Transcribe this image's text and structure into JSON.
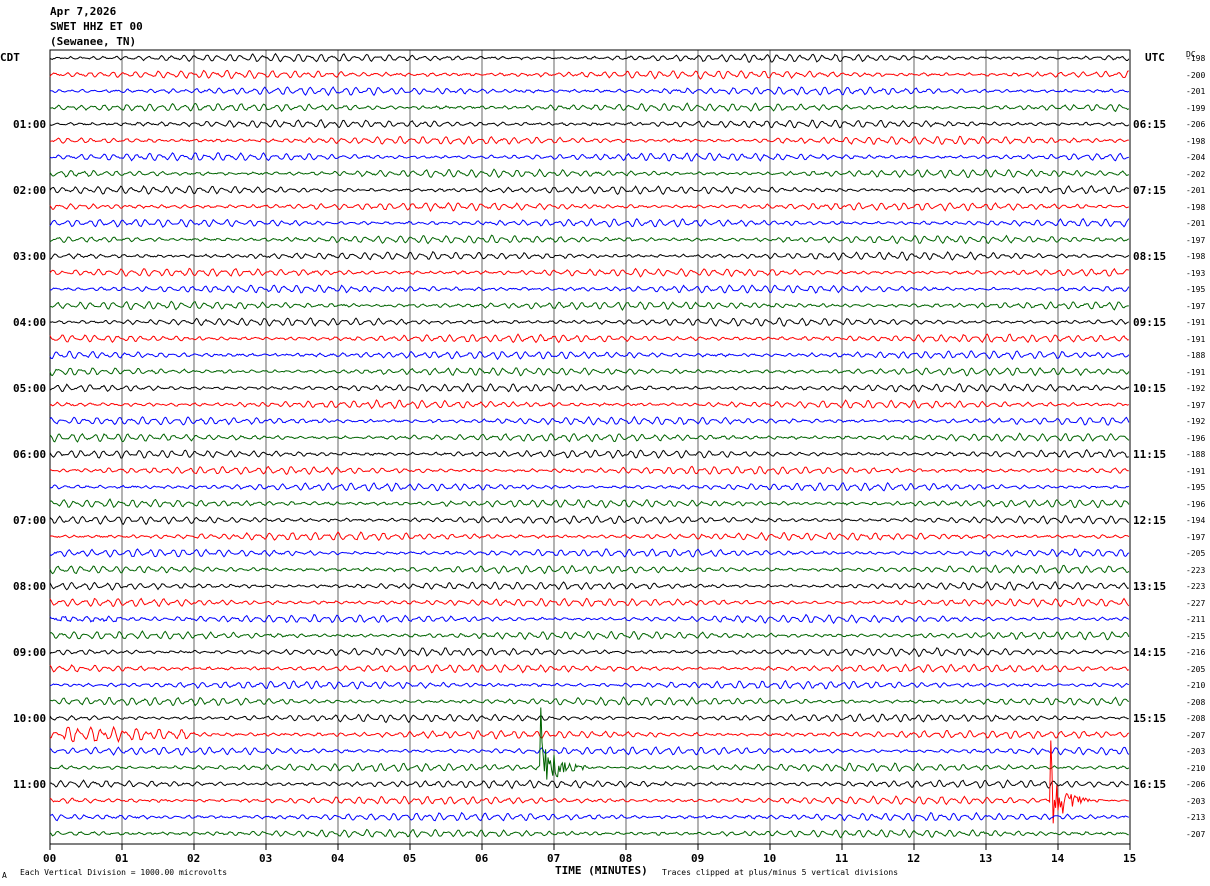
{
  "header": {
    "date": "Apr 7,2026",
    "station": "SWET HHZ ET 00",
    "location": "(Sewanee, TN)"
  },
  "left_zone": "CDT",
  "right_zone": "UTC",
  "dc_label": "DC",
  "footer": {
    "scale_note": "Each Vertical Division = 1000.00 microvolts",
    "xlabel": "TIME (MINUTES)",
    "clip_note": "Traces clipped at plus/minus 5 vertical divisions",
    "corner_mark": "A"
  },
  "colors": {
    "cycle": [
      "#000000",
      "#ff0000",
      "#0000ff",
      "#006400"
    ],
    "grid": "#000000"
  },
  "chart_data": {
    "type": "line",
    "title": "SWET HHZ ET 00",
    "xlabel": "TIME (MINUTES)",
    "xlim": [
      0,
      15
    ],
    "x_ticks": [
      "00",
      "01",
      "02",
      "03",
      "04",
      "05",
      "06",
      "07",
      "08",
      "09",
      "10",
      "11",
      "12",
      "13",
      "14",
      "15"
    ],
    "left_hour_labels": [
      "01:00",
      "02:00",
      "03:00",
      "04:00",
      "05:00",
      "06:00",
      "07:00",
      "08:00",
      "09:00",
      "10:00",
      "11:00"
    ],
    "right_hour_labels": [
      "06:15",
      "07:15",
      "08:15",
      "09:15",
      "10:15",
      "11:15",
      "12:15",
      "13:15",
      "14:15",
      "15:15",
      "16:15"
    ],
    "dc_offsets": [
      -198,
      -200,
      -201,
      -199,
      -206,
      -198,
      -204,
      -202,
      -201,
      -198,
      -201,
      -197,
      -198,
      -193,
      -195,
      -197,
      -191,
      -191,
      -188,
      -191,
      -192,
      -197,
      -192,
      -196,
      -188,
      -191,
      -195,
      -196,
      -194,
      -197,
      -205,
      -223,
      -223,
      -227,
      -211,
      -215,
      -216,
      -205,
      -210,
      -208,
      -208,
      -207,
      -203,
      -210,
      -206,
      -203,
      -213,
      -207
    ],
    "events": [
      {
        "trace": 34,
        "start_min": 0.0,
        "end_min": 1.0,
        "type": "burst"
      },
      {
        "trace": 41,
        "start_min": 0.2,
        "end_min": 2.0,
        "type": "burst"
      },
      {
        "trace": 43,
        "start_min": 6.8,
        "end_min": 8.0,
        "type": "spike"
      },
      {
        "trace": 45,
        "start_min": 13.9,
        "end_min": 15.0,
        "type": "spike"
      }
    ]
  }
}
